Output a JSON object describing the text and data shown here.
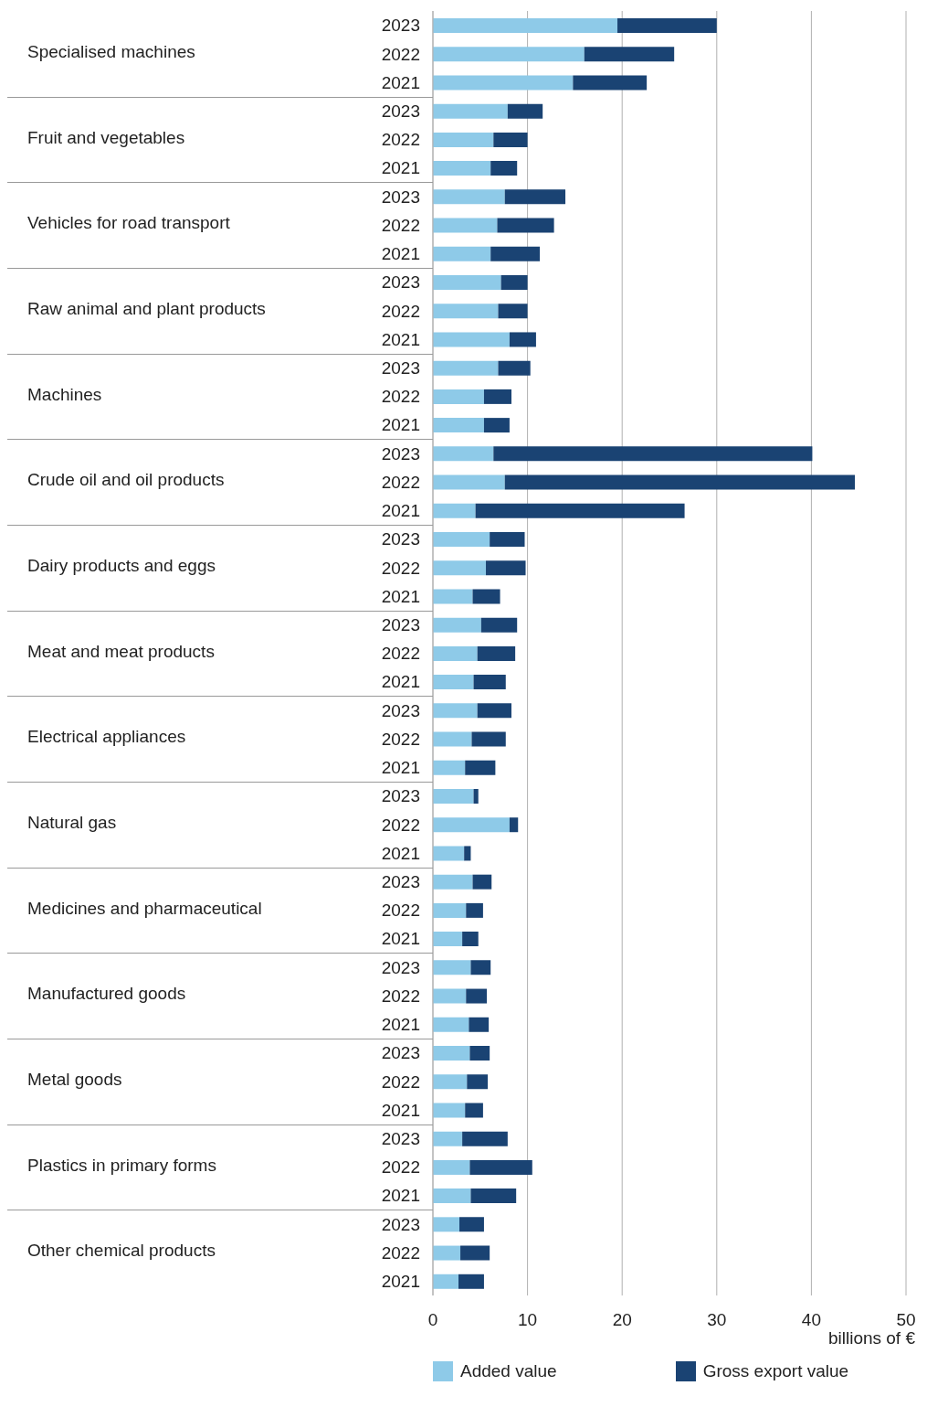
{
  "chart_data": {
    "type": "bar",
    "orientation": "horizontal",
    "stacked": true,
    "xlabel": "billions of €",
    "categories": [
      "2023",
      "2022",
      "2021",
      "2023",
      "2022",
      "2021",
      "2023",
      "2022",
      "2021",
      "2023",
      "2022",
      "2021",
      "2023",
      "2022",
      "2021",
      "2023",
      "2022",
      "2021",
      "2023",
      "2022",
      "2021",
      "2023",
      "2022",
      "2021",
      "2023",
      "2022",
      "2021",
      "2023",
      "2022",
      "2021",
      "2023",
      "2022",
      "2021",
      "2023",
      "2022",
      "2021",
      "2023",
      "2022",
      "2021",
      "2023",
      "2022",
      "2021",
      "2023",
      "2022",
      "2021"
    ],
    "annotations": [
      "Specialised machines",
      "Fruit and vegetables",
      "Vehicles for road transport",
      "Raw animal and plant products",
      "Machines",
      "Crude oil and oil products",
      "Dairy products and eggs",
      "Meat and meat products",
      "Electrical appliances",
      "Natural gas",
      "Medicines and pharmaceutical",
      "Manufactured goods",
      "Metal goods",
      "Plastics in primary forms",
      "Other chemical products"
    ],
    "series": [
      {
        "name": "Added value",
        "color": "#8ecae8",
        "values": [
          19.5,
          16.0,
          14.8,
          7.9,
          6.4,
          6.1,
          7.6,
          6.8,
          6.1,
          7.2,
          6.9,
          8.1,
          6.9,
          5.4,
          5.4,
          6.4,
          7.6,
          4.5,
          6.0,
          5.6,
          4.2,
          5.1,
          4.7,
          4.3,
          4.7,
          4.1,
          3.4,
          4.3,
          8.1,
          3.3,
          4.2,
          3.5,
          3.1,
          4.0,
          3.5,
          3.8,
          3.9,
          3.6,
          3.4,
          3.1,
          3.9,
          4.0,
          2.8,
          2.9,
          2.7
        ]
      },
      {
        "name": "Gross export value",
        "color": "#1a4373",
        "values": [
          10.5,
          9.5,
          7.8,
          3.7,
          3.6,
          2.8,
          6.4,
          6.0,
          5.2,
          2.8,
          3.1,
          2.8,
          3.4,
          2.9,
          2.7,
          33.7,
          37.0,
          22.1,
          3.7,
          4.2,
          2.9,
          3.8,
          4.0,
          3.4,
          3.6,
          3.6,
          3.2,
          0.5,
          0.9,
          0.7,
          2.0,
          1.8,
          1.7,
          2.1,
          2.2,
          2.1,
          2.1,
          2.2,
          1.9,
          4.8,
          6.6,
          4.8,
          2.6,
          3.1,
          2.7
        ]
      }
    ],
    "xlim": [
      0,
      50
    ],
    "xticks": [
      0,
      10,
      20,
      30,
      40,
      50
    ],
    "grid": "x",
    "legend": "bottom"
  }
}
